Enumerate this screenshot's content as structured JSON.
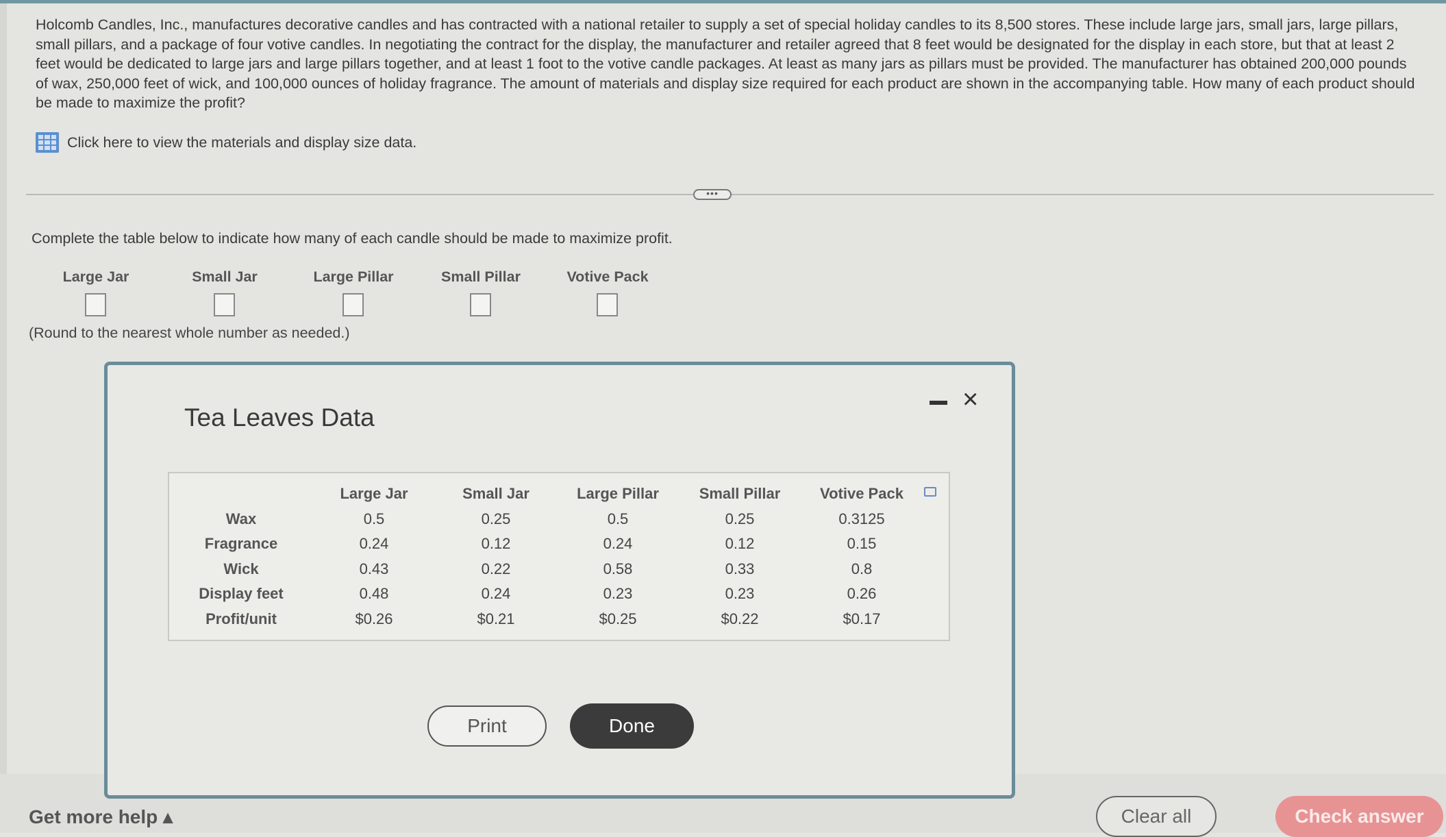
{
  "problem": "Holcomb Candles, Inc., manufactures decorative candles and has contracted with a national retailer to supply a set of special holiday candles to its 8,500 stores. These include large jars, small jars, large pillars, small pillars, and a package of four votive candles. In negotiating the contract for the display, the manufacturer and retailer agreed that 8 feet would be designated for the display in each store, but that at least 2 feet would be dedicated to large jars and large pillars together, and at least 1 foot to the votive candle packages. At least as many jars as pillars must be provided. The manufacturer has obtained 200,000 pounds of wax, 250,000 feet of wick, and 100,000 ounces of holiday fragrance. The amount of materials and display size required for each product are shown in the accompanying table. How many of each product should be made to maximize the profit?",
  "data_link": "Click here to view the materials and display size data.",
  "divider_handle": "•••",
  "instruction": "Complete the table below to indicate how many of each candle should be made to maximize profit.",
  "answer_columns": [
    "Large Jar",
    "Small Jar",
    "Large Pillar",
    "Small Pillar",
    "Votive Pack"
  ],
  "answer_values": [
    "",
    "",
    "",
    "",
    ""
  ],
  "round_note": "(Round to the nearest whole number as needed.)",
  "dialog": {
    "title": "Tea Leaves Data",
    "close": "×",
    "headers": [
      "Large Jar",
      "Small Jar",
      "Large Pillar",
      "Small Pillar",
      "Votive Pack"
    ],
    "rows": [
      {
        "label": "Wax",
        "values": [
          "0.5",
          "0.25",
          "0.5",
          "0.25",
          "0.3125"
        ]
      },
      {
        "label": "Fragrance",
        "values": [
          "0.24",
          "0.12",
          "0.24",
          "0.12",
          "0.15"
        ]
      },
      {
        "label": "Wick",
        "values": [
          "0.43",
          "0.22",
          "0.58",
          "0.33",
          "0.8"
        ]
      },
      {
        "label": "Display feet",
        "values": [
          "0.48",
          "0.24",
          "0.23",
          "0.23",
          "0.26"
        ]
      },
      {
        "label": "Profit/unit",
        "values": [
          "$0.26",
          "$0.21",
          "$0.25",
          "$0.22",
          "$0.17"
        ]
      }
    ],
    "print": "Print",
    "done": "Done"
  },
  "footer": {
    "help": "Get more help ▴",
    "clear": "Clear all",
    "check": "Check answer"
  },
  "colors": {
    "dialog_border": "#6a8c99",
    "done": "#3b3b3b",
    "check": "#e79393",
    "grid_icon": "#5b8fd0"
  }
}
